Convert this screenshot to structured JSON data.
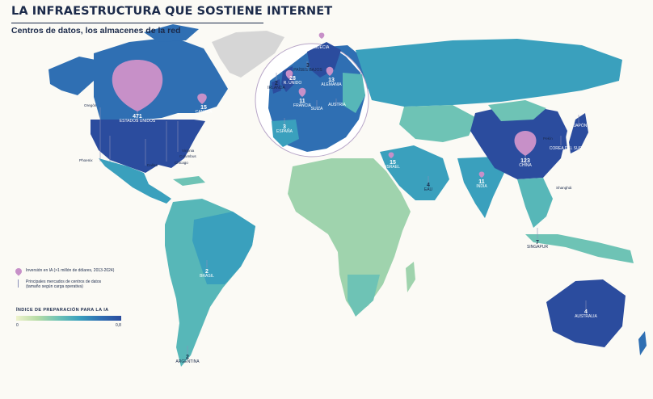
{
  "title": "LA INFRAESTRUCTURA QUE SOSTIENE INTERNET",
  "subtitle": "Centros de datos, los almacenes de la red",
  "legend": {
    "investment": "Inversión en IA (>1 millón de dólares, 2013-2024)",
    "markets_line1": "Principales mercados de centros de datos",
    "markets_line2": "(tamaño según carga operativa)"
  },
  "scale": {
    "title": "ÍNDICE DE PREPARACIÓN PARA LA IA",
    "min": "0",
    "max": "0,8"
  },
  "colors": {
    "bubble": "#c790c8",
    "ocean": "#fbfaf5",
    "title": "#1b2a4a",
    "scale_low": "#eef2cc",
    "scale_high": "#2b4c9e",
    "no_data": "#d6d6d6"
  },
  "countries": [
    {
      "id": "usa",
      "value": "471",
      "name": "ESTADOS UNIDOS"
    },
    {
      "id": "canada",
      "value": "15",
      "name": "CANADÁ"
    },
    {
      "id": "brazil",
      "value": "2",
      "name": "BRASIL"
    },
    {
      "id": "argentina",
      "value": "2",
      "name": "ARGENTINA"
    },
    {
      "id": "ireland",
      "value": "2",
      "name": "IRLANDA"
    },
    {
      "id": "uk",
      "value": "28",
      "name": "R. UNIDO"
    },
    {
      "id": "nl",
      "value": "3",
      "name": "PAÍSES BAJOS"
    },
    {
      "id": "sweden",
      "value": "7",
      "name": "SUECIA"
    },
    {
      "id": "germany",
      "value": "13",
      "name": "ALEMANIA"
    },
    {
      "id": "france",
      "value": "11",
      "name": "FRANCIA"
    },
    {
      "id": "spain",
      "value": "3",
      "name": "ESPAÑA"
    },
    {
      "id": "swiss",
      "value": "",
      "name": "SUIZA"
    },
    {
      "id": "austria",
      "value": "",
      "name": "AUSTRIA"
    },
    {
      "id": "israel",
      "value": "15",
      "name": "ISRAEL"
    },
    {
      "id": "uae",
      "value": "4",
      "name": "EAU"
    },
    {
      "id": "india",
      "value": "11",
      "name": "INDIA"
    },
    {
      "id": "china",
      "value": "123",
      "name": "CHINA"
    },
    {
      "id": "japan",
      "value": "",
      "name": "JAPÓN"
    },
    {
      "id": "korea",
      "value": "",
      "name": "COREA DEL SUR"
    },
    {
      "id": "singapore",
      "value": "7",
      "name": "SINGAPUR"
    },
    {
      "id": "australia",
      "value": "4",
      "name": "AUSTRALIA"
    }
  ],
  "cities": [
    "Oregón",
    "Phoenix",
    "Dallas",
    "Virginia",
    "Columbus",
    "Chicago",
    "Pekín",
    "Shanghái"
  ]
}
